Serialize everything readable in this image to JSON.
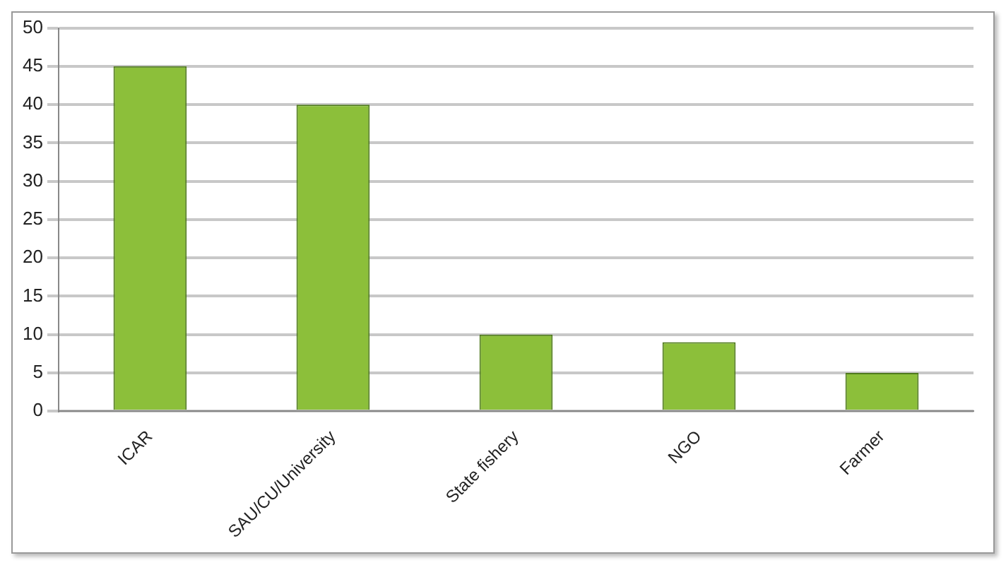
{
  "chart_data": {
    "type": "bar",
    "categories": [
      "ICAR",
      "SAU/CU/University",
      "State fishery",
      "NGO",
      "Farmer"
    ],
    "values": [
      45,
      40,
      10,
      9,
      5
    ],
    "color": "#8cbf3a",
    "ylim": [
      0,
      50
    ],
    "yticks": [
      0,
      5,
      10,
      15,
      20,
      25,
      30,
      35,
      40,
      45,
      50
    ],
    "grid": "y"
  }
}
